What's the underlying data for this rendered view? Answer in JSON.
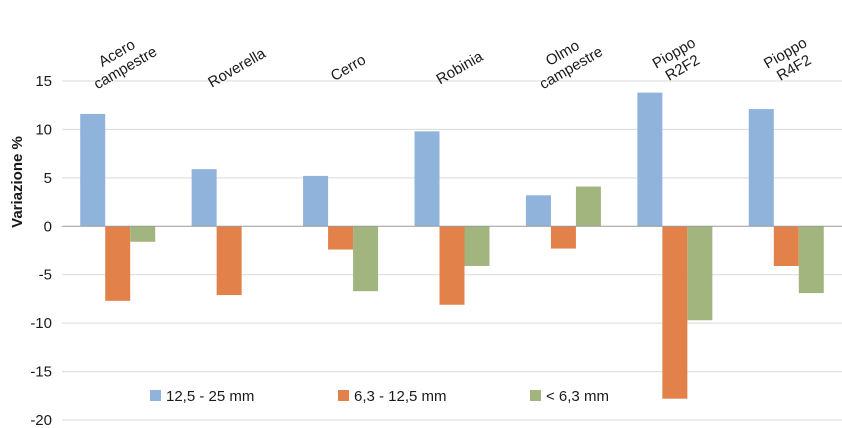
{
  "chart_data": {
    "type": "bar",
    "title": "",
    "xlabel": "",
    "ylabel": "Variazione  %",
    "ylim": [
      -20,
      15
    ],
    "ytick_step": 5,
    "grid": true,
    "legend_position": "bottom-inside",
    "categories": [
      [
        "Acero",
        "campestre"
      ],
      [
        "Roverella"
      ],
      [
        "Cerro"
      ],
      [
        "Robinia"
      ],
      [
        "Olmo",
        "campestre"
      ],
      [
        "Pioppo",
        "R2F2"
      ],
      [
        "Pioppo",
        "R4F2"
      ]
    ],
    "series": [
      {
        "name": "12,5 - 25 mm",
        "color": "#8fb3db",
        "values": [
          11.6,
          5.9,
          5.2,
          9.8,
          3.2,
          13.8,
          12.1
        ]
      },
      {
        "name": "6,3 - 12,5 mm",
        "color": "#e2814a",
        "values": [
          -7.7,
          -7.1,
          -2.4,
          -8.1,
          -2.3,
          -17.8,
          -4.1
        ]
      },
      {
        "name": "< 6,3 mm",
        "color": "#a3b57f",
        "values": [
          -1.6,
          null,
          -6.7,
          -4.1,
          4.1,
          -9.7,
          -6.9
        ]
      }
    ]
  }
}
